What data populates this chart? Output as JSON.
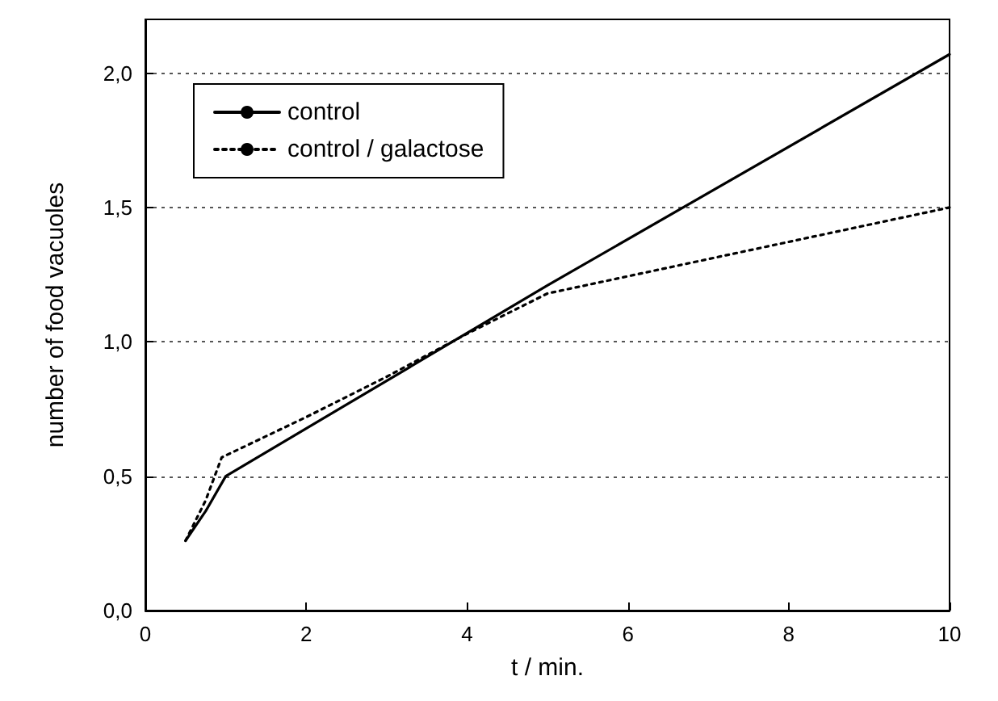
{
  "chart_data": {
    "type": "line",
    "xlabel": "t / min.",
    "ylabel": "number of food vacuoles",
    "xlim": [
      0,
      10
    ],
    "xticks": [
      0,
      2,
      4,
      6,
      8,
      10
    ],
    "ylim": [
      0,
      2.2
    ],
    "yticks": [
      {
        "value": 0,
        "label": "0,0"
      },
      {
        "value": 0.5,
        "label": "0,5"
      },
      {
        "value": 1,
        "label": "1,0"
      },
      {
        "value": 1.5,
        "label": "1,5"
      },
      {
        "value": 2,
        "label": "2,0"
      }
    ],
    "grid": "y",
    "legend": "top left",
    "marker": "none",
    "series": [
      {
        "name": "control",
        "color": "#000000",
        "line_style": "solid",
        "x": [
          0.5,
          0.75,
          1,
          5,
          10
        ],
        "values": [
          0.26,
          0.37,
          0.5,
          1.21,
          2.07
        ]
      },
      {
        "name": "control / galactose",
        "color": "#000000",
        "line_style": "dotted",
        "x": [
          0.5,
          0.75,
          0.95,
          2,
          3,
          4,
          5,
          10
        ],
        "values": [
          0.26,
          0.41,
          0.57,
          0.72,
          0.87,
          1.03,
          1.18,
          1.5
        ]
      }
    ]
  }
}
